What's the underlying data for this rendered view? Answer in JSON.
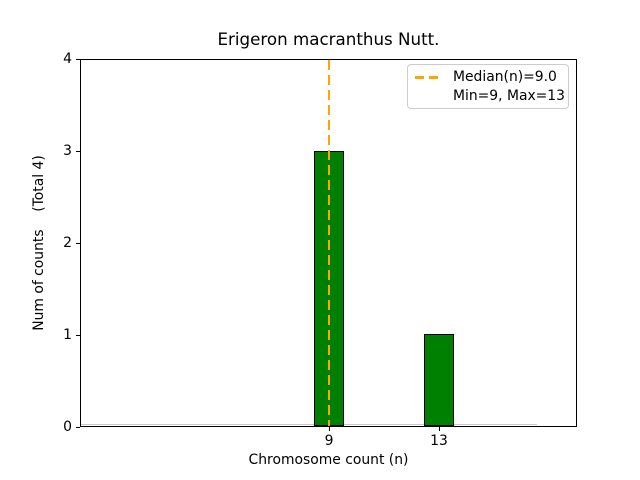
{
  "chart_data": {
    "type": "bar",
    "title": "Erigeron macranthus Nutt.",
    "xlabel": "Chromosome count (n)",
    "ylabel": "Num of counts    (Total 4)",
    "categories": [
      9,
      13
    ],
    "values": [
      3,
      1
    ],
    "xticks": [
      "9",
      "13"
    ],
    "yticks": [
      "0",
      "1",
      "2",
      "3",
      "4"
    ],
    "xlim": [
      0,
      18
    ],
    "ylim": [
      0,
      4
    ],
    "grid": false,
    "median_line": {
      "x": 9.0,
      "style": "dashed"
    },
    "legend": {
      "position": "upper right",
      "entries": [
        {
          "label": "Median(n)=9.0",
          "marker": "orange-dashed-line"
        },
        {
          "label": "Min=9, Max=13",
          "marker": "none"
        }
      ]
    },
    "colors": {
      "bar": "#008000",
      "bar_edge": "#000000",
      "median_line": "#FFA500",
      "legend_border": "#cccccc",
      "spines": "#000000",
      "text": "#000000",
      "zero_baseline": "#c9c9c9",
      "background": "#ffffff"
    }
  }
}
